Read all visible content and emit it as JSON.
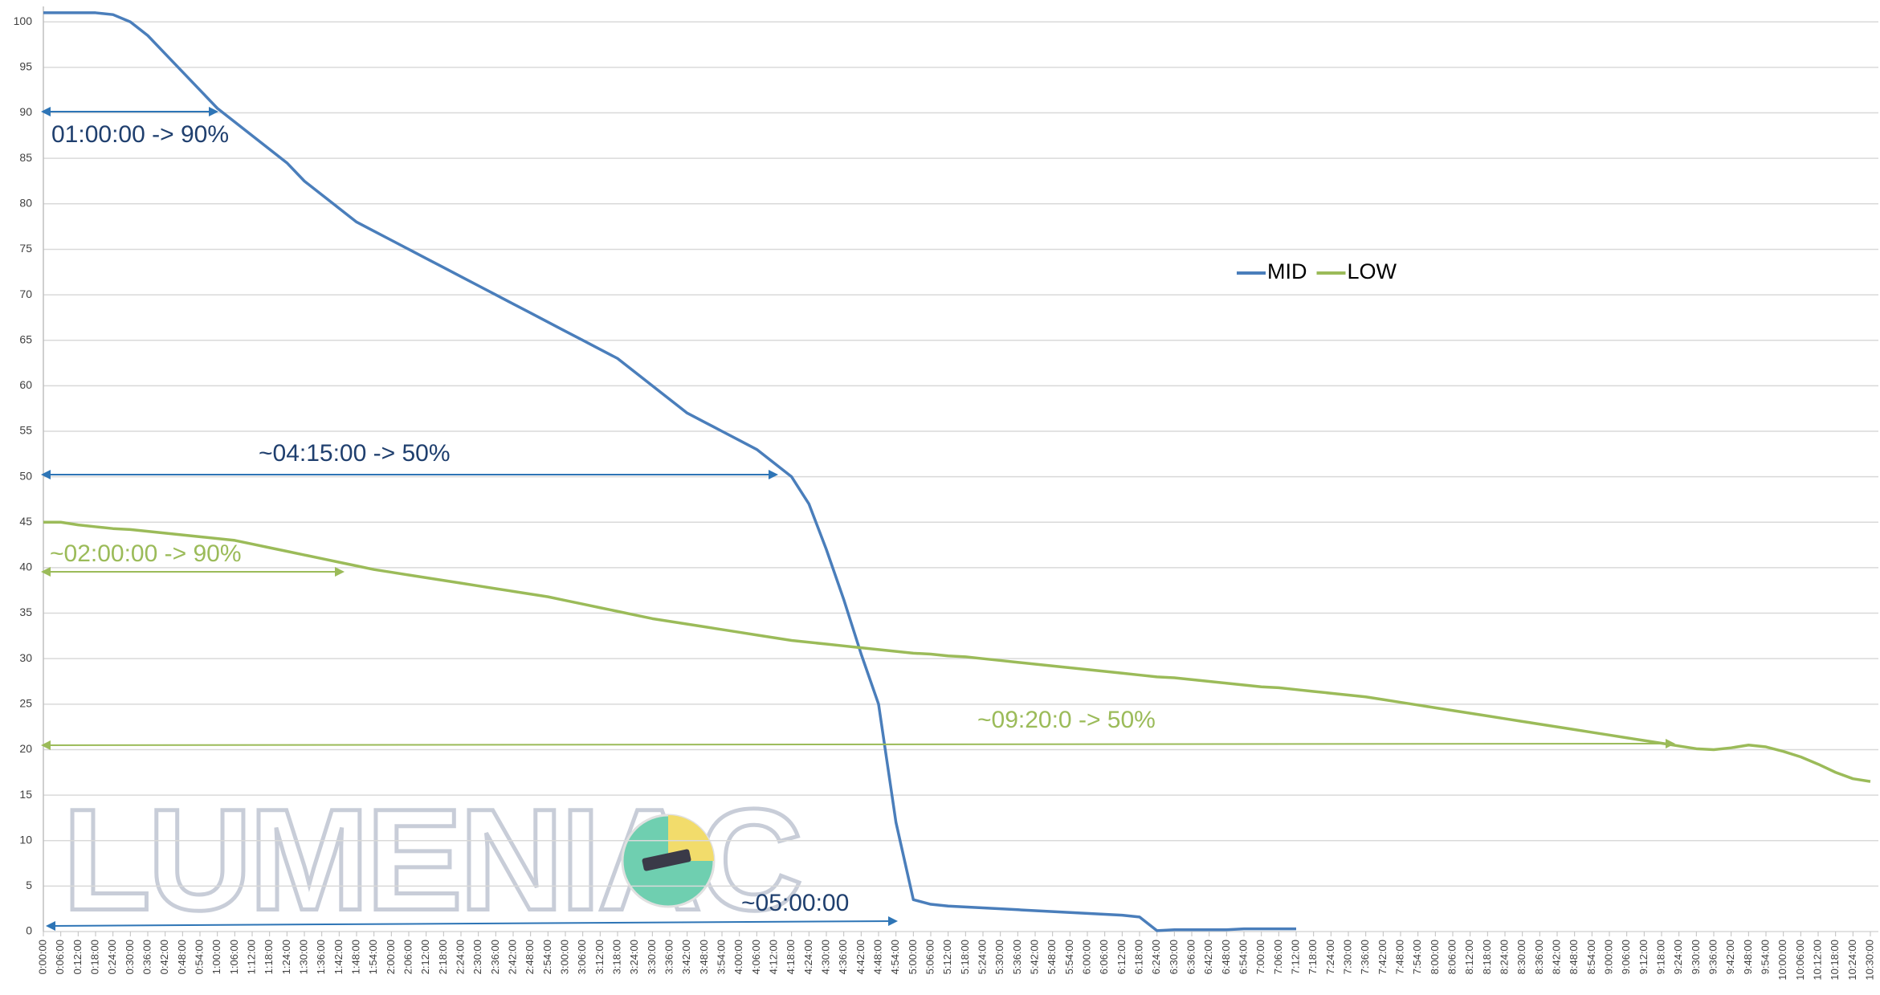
{
  "chart_data": {
    "type": "line",
    "categories": [
      "0:00:00",
      "0:06:00",
      "0:12:00",
      "0:18:00",
      "0:24:00",
      "0:30:00",
      "0:36:00",
      "0:42:00",
      "0:48:00",
      "0:54:00",
      "1:00:00",
      "1:06:00",
      "1:12:00",
      "1:18:00",
      "1:24:00",
      "1:30:00",
      "1:36:00",
      "1:42:00",
      "1:48:00",
      "1:54:00",
      "2:00:00",
      "2:06:00",
      "2:12:00",
      "2:18:00",
      "2:24:00",
      "2:30:00",
      "2:36:00",
      "2:42:00",
      "2:48:00",
      "2:54:00",
      "3:00:00",
      "3:06:00",
      "3:12:00",
      "3:18:00",
      "3:24:00",
      "3:30:00",
      "3:36:00",
      "3:42:00",
      "3:48:00",
      "3:54:00",
      "4:00:00",
      "4:06:00",
      "4:12:00",
      "4:18:00",
      "4:24:00",
      "4:30:00",
      "4:36:00",
      "4:42:00",
      "4:48:00",
      "4:54:00",
      "5:00:00",
      "5:06:00",
      "5:12:00",
      "5:18:00",
      "5:24:00",
      "5:30:00",
      "5:36:00",
      "5:42:00",
      "5:48:00",
      "5:54:00",
      "6:00:00",
      "6:06:00",
      "6:12:00",
      "6:18:00",
      "6:24:00",
      "6:30:00",
      "6:36:00",
      "6:42:00",
      "6:48:00",
      "6:54:00",
      "7:00:00",
      "7:06:00",
      "7:12:00",
      "7:18:00",
      "7:24:00",
      "7:30:00",
      "7:36:00",
      "7:42:00",
      "7:48:00",
      "7:54:00",
      "8:00:00",
      "8:06:00",
      "8:12:00",
      "8:18:00",
      "8:24:00",
      "8:30:00",
      "8:36:00",
      "8:42:00",
      "8:48:00",
      "8:54:00",
      "9:00:00",
      "9:06:00",
      "9:12:00",
      "9:18:00",
      "9:24:00",
      "9:30:00",
      "9:36:00",
      "9:42:00",
      "9:48:00",
      "9:54:00",
      "10:00:00",
      "10:06:00",
      "10:12:00",
      "10:18:00",
      "10:24:00",
      "10:30:00"
    ],
    "series": [
      {
        "name": "MID",
        "color": "#4a7ebb",
        "values": [
          101,
          101,
          101,
          101,
          100.8,
          100,
          98.5,
          96.5,
          94.5,
          92.5,
          90.5,
          89,
          87.5,
          86,
          84.5,
          82.5,
          81,
          79.5,
          78,
          77,
          76,
          75,
          74,
          73,
          72,
          71,
          70,
          69,
          68,
          67,
          66,
          65,
          64,
          63,
          61.5,
          60,
          58.5,
          57,
          56,
          55,
          54,
          53,
          51.5,
          50,
          47,
          42,
          36.5,
          30.5,
          25,
          12,
          3.5,
          3,
          2.8,
          2.7,
          2.6,
          2.5,
          2.4,
          2.3,
          2.2,
          2.1,
          2,
          1.9,
          1.8,
          1.6,
          0.1,
          0.2,
          0.2,
          0.2,
          0.2,
          0.3,
          0.3,
          0.3,
          0.3,
          null,
          null,
          null,
          null,
          null,
          null,
          null,
          null,
          null,
          null,
          null,
          null,
          null,
          null,
          null,
          null,
          null,
          null,
          null,
          null,
          null,
          null,
          null,
          null,
          null,
          null,
          null,
          null,
          null,
          null,
          null,
          null,
          null
        ]
      },
      {
        "name": "LOW",
        "color": "#9bbb59",
        "values": [
          45,
          45,
          44.7,
          44.5,
          44.3,
          44.2,
          44,
          43.8,
          43.6,
          43.4,
          43.2,
          43,
          42.6,
          42.2,
          41.8,
          41.4,
          41,
          40.6,
          40.2,
          39.8,
          39.5,
          39.2,
          38.9,
          38.6,
          38.3,
          38,
          37.7,
          37.4,
          37.1,
          36.8,
          36.4,
          36,
          35.6,
          35.2,
          34.8,
          34.4,
          34.1,
          33.8,
          33.5,
          33.2,
          32.9,
          32.6,
          32.3,
          32,
          31.8,
          31.6,
          31.4,
          31.2,
          31,
          30.8,
          30.6,
          30.5,
          30.3,
          30.2,
          30,
          29.8,
          29.6,
          29.4,
          29.2,
          29,
          28.8,
          28.6,
          28.4,
          28.2,
          28,
          27.9,
          27.7,
          27.5,
          27.3,
          27.1,
          26.9,
          26.8,
          26.6,
          26.4,
          26.2,
          26,
          25.8,
          25.5,
          25.2,
          24.9,
          24.6,
          24.3,
          24,
          23.7,
          23.4,
          23.1,
          22.8,
          22.5,
          22.2,
          21.9,
          21.6,
          21.3,
          21,
          20.7,
          20.4,
          20.1,
          20,
          20.2,
          20.5,
          20.3,
          19.8,
          19.2,
          18.4,
          17.5,
          16.8,
          16.5
        ]
      }
    ],
    "ylim": [
      0,
      101.7
    ],
    "yticks": [
      0,
      5,
      10,
      15,
      20,
      25,
      30,
      35,
      40,
      45,
      50,
      55,
      60,
      65,
      70,
      75,
      80,
      85,
      90,
      95,
      100
    ],
    "grid": true,
    "legend": "top-right",
    "annotations": [
      {
        "text": "01:00:00 -> 90%",
        "color": "#1f3f6e"
      },
      {
        "text": "~04:15:00 -> 50%",
        "color": "#1f3f6e"
      },
      {
        "text": "~02:00:00 -> 90%",
        "color": "#9bbb59"
      },
      {
        "text": "~09:20:0 -> 50%",
        "color": "#9bbb59"
      },
      {
        "text": "~05:00:00",
        "color": "#1f3f6e"
      }
    ],
    "watermark": "LUMENIAC"
  }
}
